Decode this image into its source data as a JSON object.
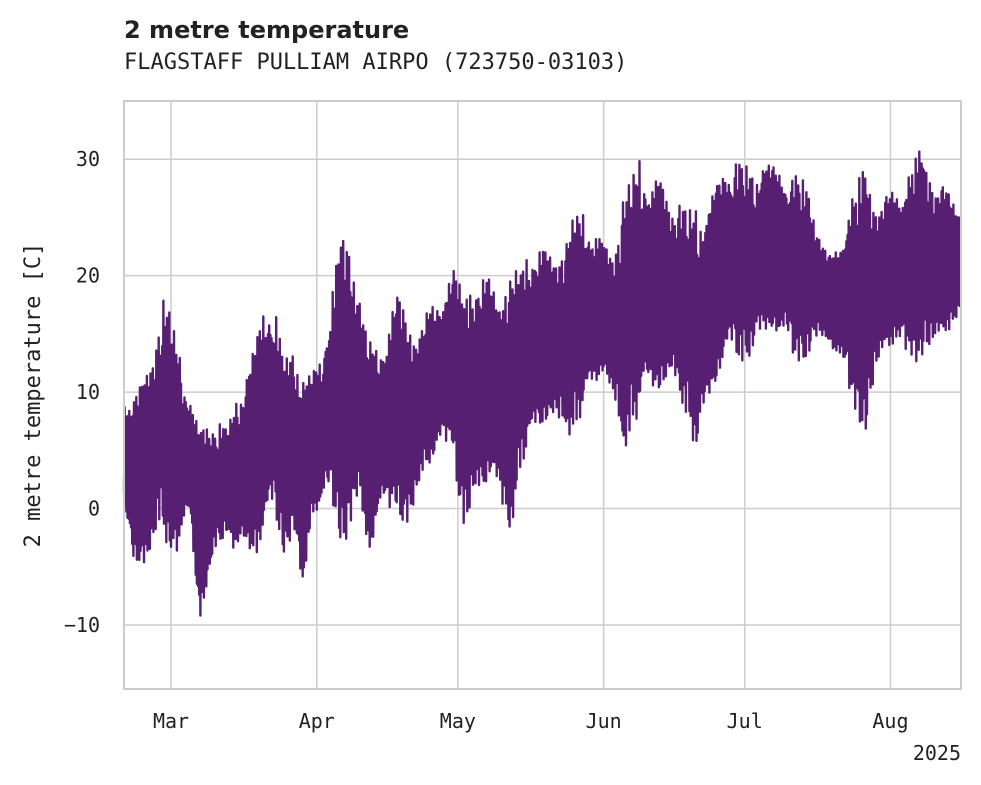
{
  "chart_data": {
    "type": "line",
    "title": "2 metre temperature",
    "subtitle": "FLAGSTAFF PULLIAM AIRPO (723750-03103)",
    "xlabel": "",
    "ylabel": "2 metre temperature [C]",
    "ylim": [
      -15.5,
      35
    ],
    "yticks": [
      -10,
      0,
      10,
      20,
      30
    ],
    "xlim": [
      "2025-02-19",
      "2025-08-16"
    ],
    "xticks": [
      {
        "date": "2025-03-01",
        "label": "Mar"
      },
      {
        "date": "2025-04-01",
        "label": "Apr"
      },
      {
        "date": "2025-05-01",
        "label": "May"
      },
      {
        "date": "2025-06-01",
        "label": "Jun"
      },
      {
        "date": "2025-07-01",
        "label": "Jul"
      },
      {
        "date": "2025-08-01",
        "label": "Aug"
      }
    ],
    "year_label": "2025",
    "grid": true,
    "line_color": "#561f72",
    "series": [
      {
        "x": [
          "2025-02-19",
          "2025-02-21",
          "2025-02-23",
          "2025-02-25",
          "2025-02-27",
          "2025-03-01",
          "2025-03-03",
          "2025-03-05",
          "2025-03-07",
          "2025-03-09",
          "2025-03-11",
          "2025-03-13",
          "2025-03-15",
          "2025-03-17",
          "2025-03-19",
          "2025-03-21",
          "2025-03-23",
          "2025-03-25",
          "2025-03-27",
          "2025-03-29",
          "2025-03-31",
          "2025-04-02",
          "2025-04-04",
          "2025-04-06",
          "2025-04-08",
          "2025-04-10",
          "2025-04-12",
          "2025-04-14",
          "2025-04-16",
          "2025-04-18",
          "2025-04-20",
          "2025-04-22",
          "2025-04-24",
          "2025-04-26",
          "2025-04-28",
          "2025-04-30",
          "2025-05-02",
          "2025-05-04",
          "2025-05-06",
          "2025-05-08",
          "2025-05-10",
          "2025-05-12",
          "2025-05-14",
          "2025-05-16",
          "2025-05-18",
          "2025-05-20",
          "2025-05-22",
          "2025-05-24",
          "2025-05-26",
          "2025-05-28",
          "2025-05-30",
          "2025-06-01",
          "2025-06-03",
          "2025-06-05",
          "2025-06-07",
          "2025-06-09",
          "2025-06-11",
          "2025-06-13",
          "2025-06-15",
          "2025-06-17",
          "2025-06-19",
          "2025-06-21",
          "2025-06-23",
          "2025-06-25",
          "2025-06-27",
          "2025-06-29",
          "2025-07-01",
          "2025-07-03",
          "2025-07-05",
          "2025-07-07",
          "2025-07-09",
          "2025-07-11",
          "2025-07-13",
          "2025-07-15",
          "2025-07-17",
          "2025-07-19",
          "2025-07-21",
          "2025-07-23",
          "2025-07-25",
          "2025-07-27",
          "2025-07-29",
          "2025-07-31",
          "2025-08-02",
          "2025-08-04",
          "2025-08-06",
          "2025-08-08",
          "2025-08-10",
          "2025-08-12",
          "2025-08-14",
          "2025-08-16"
        ],
        "min": [
          -2,
          -7,
          -8,
          -7,
          -3,
          -4,
          -5,
          -2,
          -13,
          -9,
          -4,
          -2,
          -5,
          -6,
          -8,
          -5,
          -2,
          -4,
          -3,
          -11,
          -3,
          -2,
          -1,
          -3,
          -4,
          -2,
          -8,
          -3,
          -2,
          0,
          -3,
          -2,
          1,
          2,
          4,
          5,
          -3,
          -3,
          -2,
          0,
          -2,
          -3,
          2,
          3,
          4,
          5,
          5,
          6,
          6,
          7,
          8,
          10,
          7,
          4,
          6,
          7,
          7,
          7,
          8,
          9,
          7,
          3,
          6,
          8,
          10,
          12,
          12,
          13,
          12,
          13,
          12,
          12,
          12,
          13,
          13,
          13,
          11,
          9,
          7,
          6,
          9,
          12,
          11,
          12,
          12,
          13,
          11,
          13,
          13,
          15
        ],
        "max": [
          11,
          12,
          14,
          16,
          19,
          17,
          14,
          11,
          10,
          10,
          8,
          7,
          10,
          14,
          18,
          21,
          19,
          13,
          14,
          15,
          14,
          15,
          20,
          24,
          23,
          22,
          18,
          16,
          17,
          19,
          17,
          17,
          19,
          20,
          20,
          21,
          19,
          22,
          23,
          23,
          21,
          20,
          21,
          24,
          25,
          25,
          24,
          23,
          26,
          27,
          26,
          25,
          24,
          27,
          29,
          32,
          31,
          32,
          29,
          27,
          26,
          27,
          29,
          31,
          32,
          31,
          30,
          29,
          33,
          32,
          31,
          30,
          29,
          27,
          25,
          23,
          24,
          27,
          29,
          30,
          28,
          29,
          30,
          29,
          31,
          31,
          30,
          30,
          29,
          27
        ]
      }
    ]
  }
}
